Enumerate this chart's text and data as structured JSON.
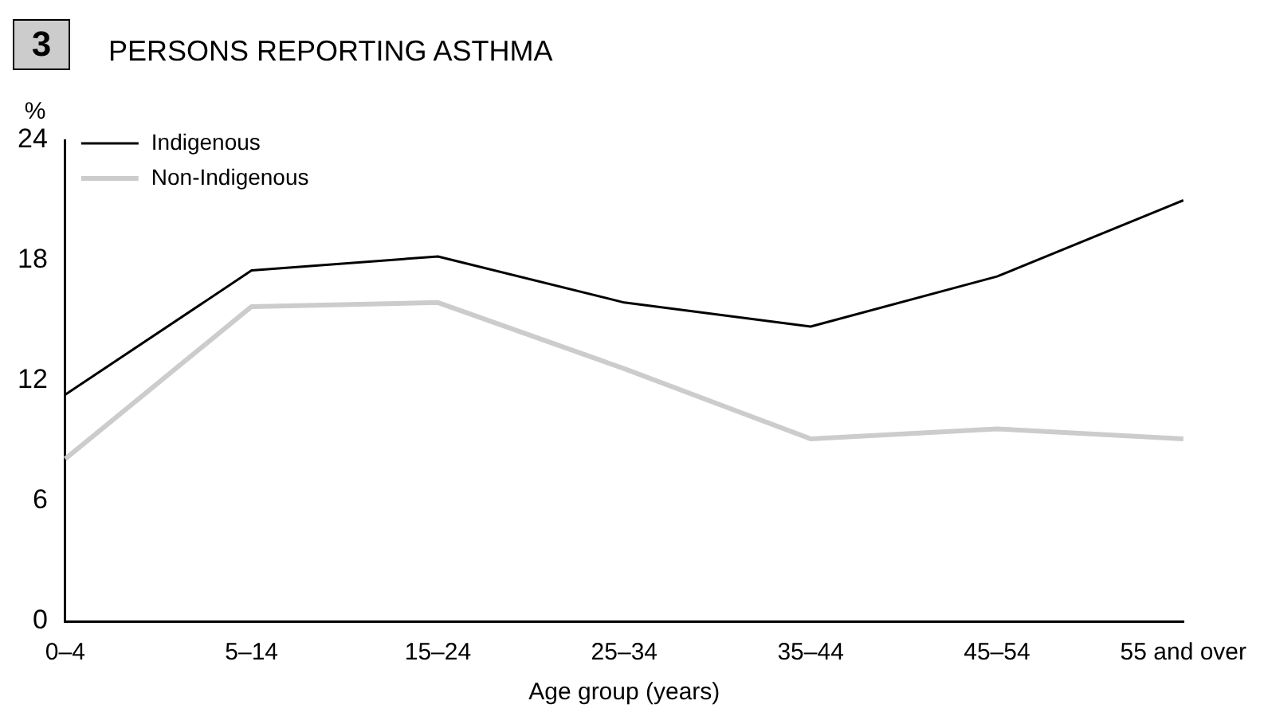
{
  "chart_data": {
    "type": "line",
    "title": "PERSONS REPORTING ASTHMA",
    "annotations": [
      "3"
    ],
    "ylabel": "%",
    "xlabel": "Age group (years)",
    "categories": [
      "0–4",
      "5–14",
      "15–24",
      "25–34",
      "35–44",
      "45–54",
      "55 and over"
    ],
    "series": [
      {
        "name": "Indigenous",
        "color": "#000000",
        "values": [
          11.3,
          17.5,
          18.2,
          15.9,
          14.7,
          17.2,
          21.0
        ]
      },
      {
        "name": "Non-Indigenous",
        "color": "#cccccc",
        "values": [
          8.1,
          15.7,
          15.9,
          12.6,
          9.1,
          9.6,
          9.1
        ]
      }
    ],
    "ylim": [
      0,
      24
    ],
    "yticks": [
      0,
      6,
      12,
      18,
      24
    ],
    "grid": false,
    "legend": "top left",
    "marker": "none",
    "line_style": "solid"
  }
}
